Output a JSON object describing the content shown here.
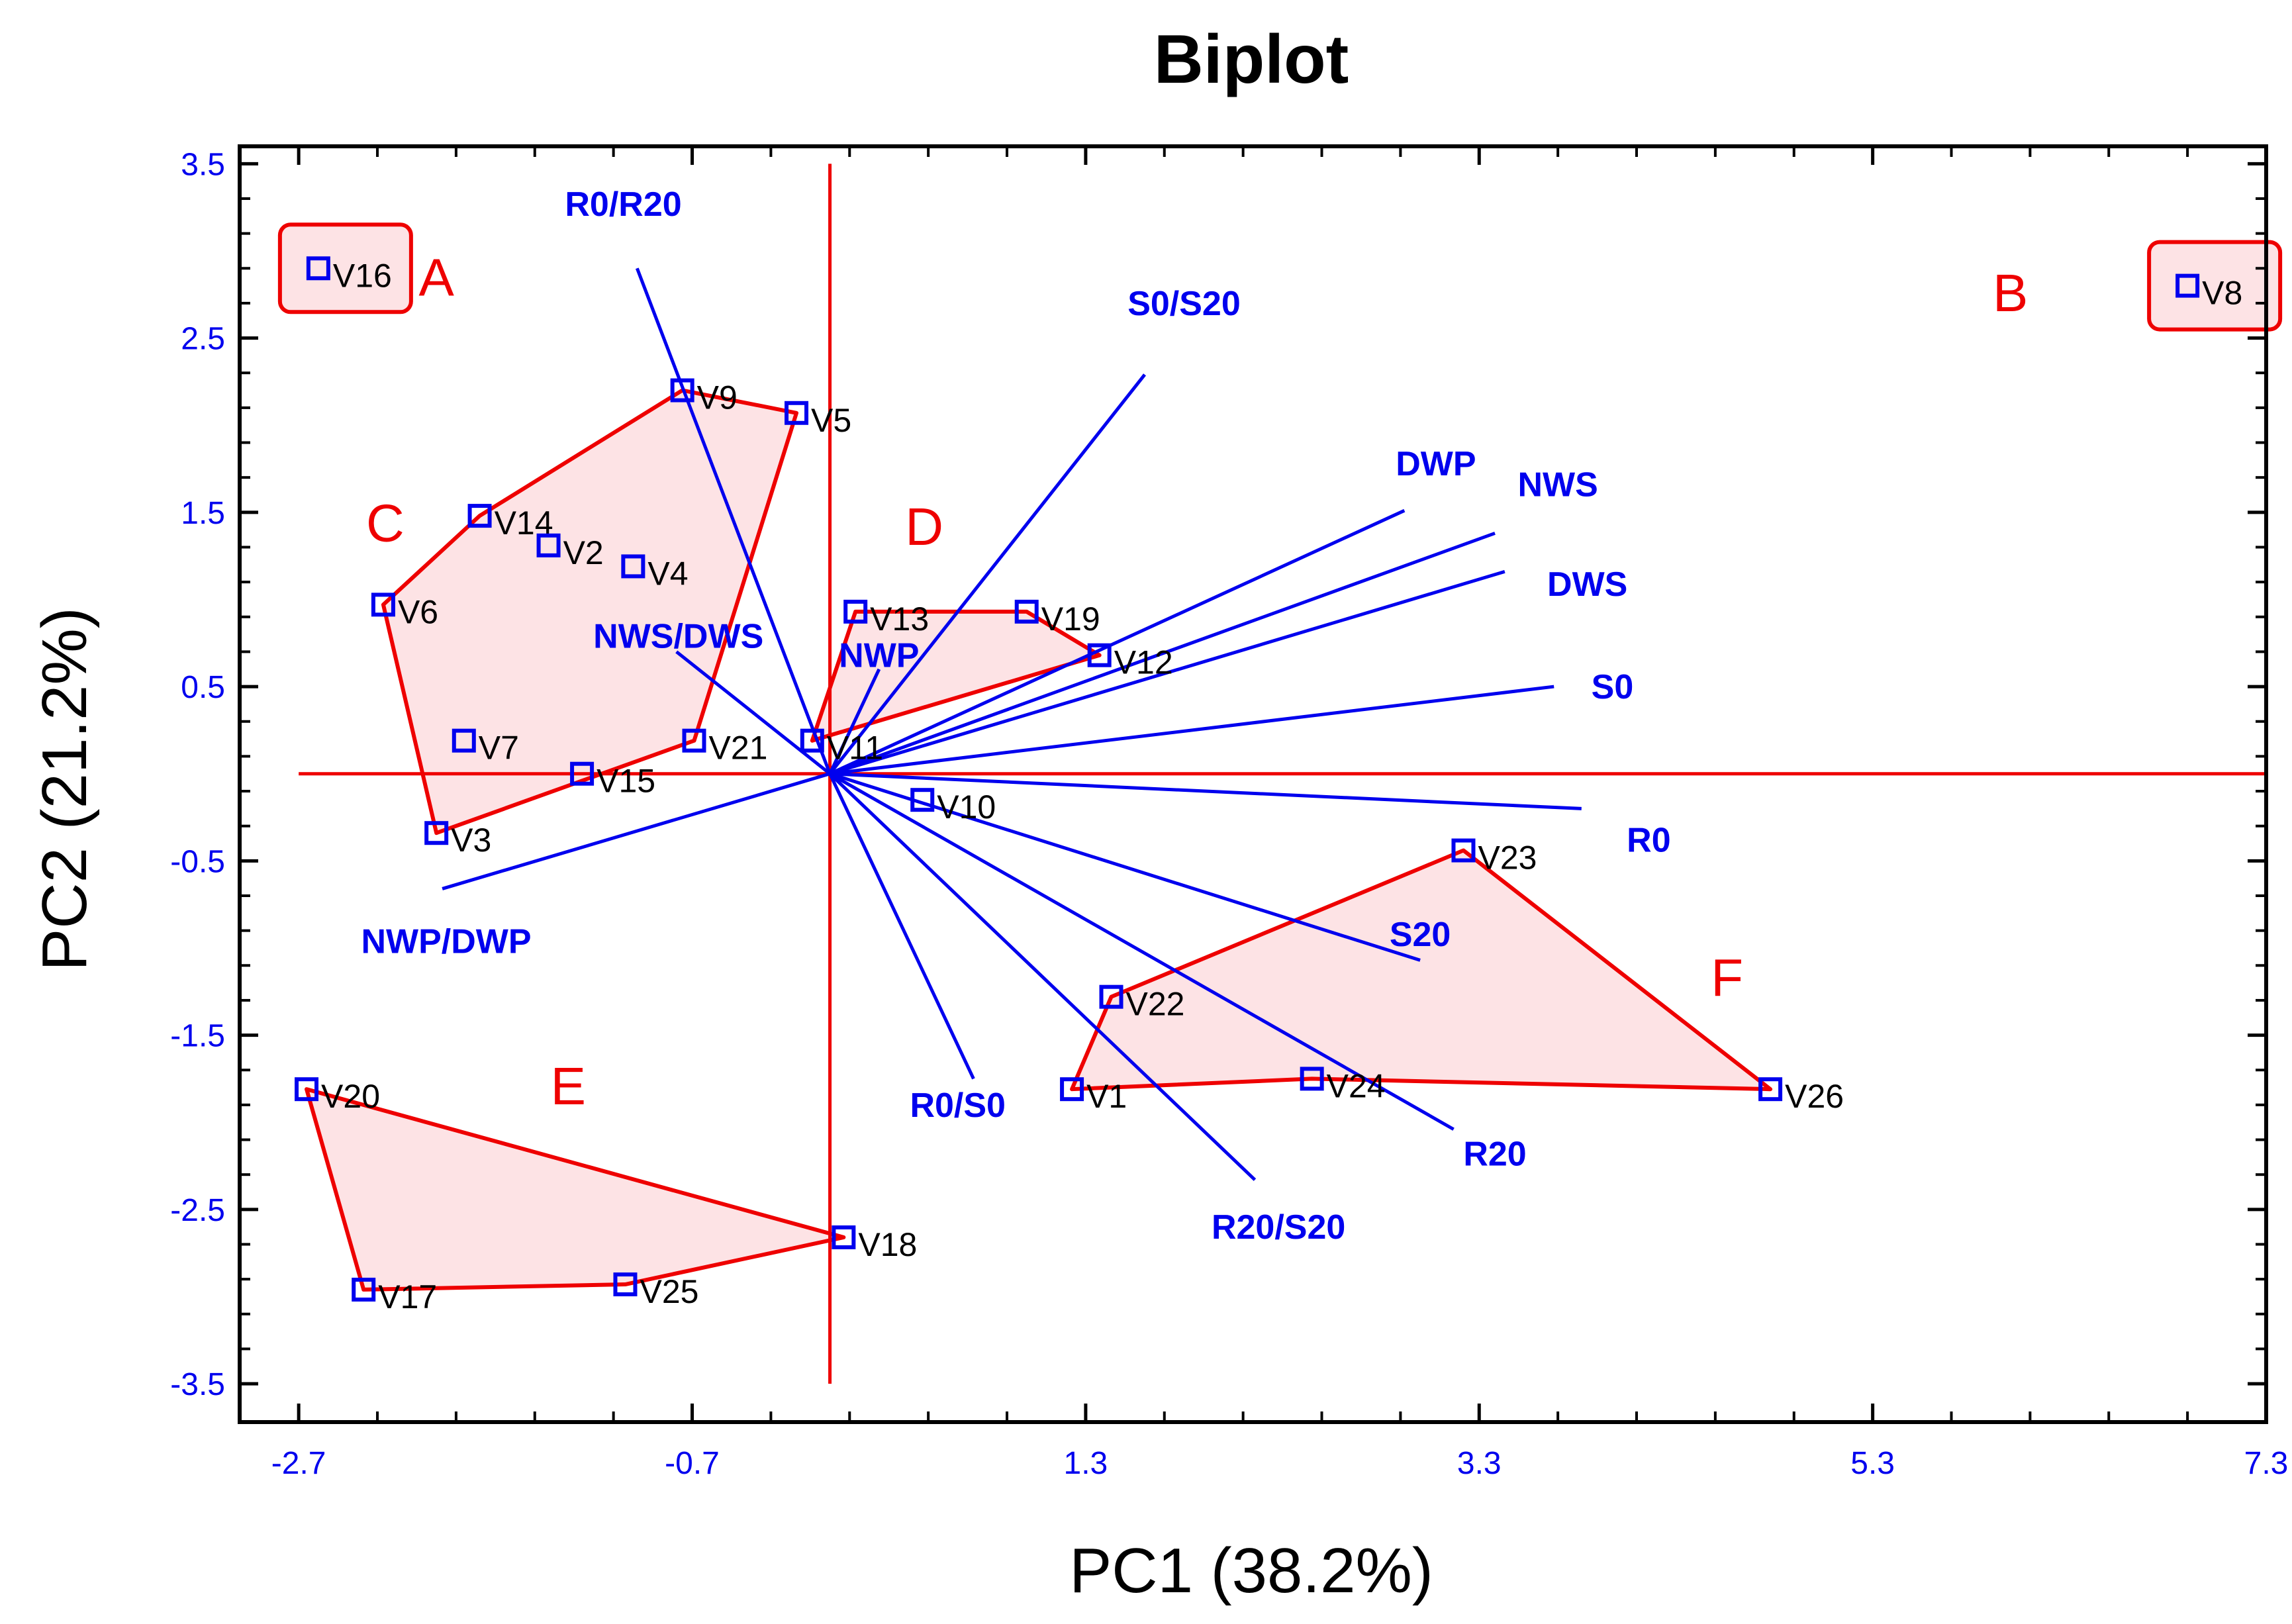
{
  "chart_data": {
    "type": "scatter",
    "title": "Biplot",
    "xlabel": "PC1 (38.2%)",
    "ylabel": "PC2 (21.2%)",
    "xlim": [
      -3.0,
      7.3
    ],
    "ylim": [
      -3.72,
      3.6
    ],
    "x_ticks": [
      "-2.7",
      "-0.7",
      "1.3",
      "3.3",
      "5.3",
      "7.3"
    ],
    "y_ticks": [
      "3.5",
      "2.5",
      "1.5",
      "0.5",
      "-0.5",
      "-1.5",
      "-2.5",
      "-3.5"
    ],
    "colors": {
      "points": "#0000ee",
      "vectors": "#0000ee",
      "hulls": "#ee0000",
      "hull_fill": "#fde3e5",
      "axes_lines": "#ee0000"
    },
    "observations": [
      {
        "label": "V16",
        "x": -2.6,
        "y": 2.9
      },
      {
        "label": "V8",
        "x": 6.9,
        "y": 2.8
      },
      {
        "label": "V9",
        "x": -0.75,
        "y": 2.2
      },
      {
        "label": "V5",
        "x": -0.17,
        "y": 2.07
      },
      {
        "label": "V14",
        "x": -1.78,
        "y": 1.48
      },
      {
        "label": "V2",
        "x": -1.43,
        "y": 1.31
      },
      {
        "label": "V4",
        "x": -1.0,
        "y": 1.19
      },
      {
        "label": "V6",
        "x": -2.27,
        "y": 0.97
      },
      {
        "label": "V13",
        "x": 0.13,
        "y": 0.93
      },
      {
        "label": "V19",
        "x": 1.0,
        "y": 0.93
      },
      {
        "label": "V12",
        "x": 1.37,
        "y": 0.68
      },
      {
        "label": "V7",
        "x": -1.86,
        "y": 0.19
      },
      {
        "label": "V21",
        "x": -0.69,
        "y": 0.19
      },
      {
        "label": "V11",
        "x": -0.09,
        "y": 0.19
      },
      {
        "label": "V15",
        "x": -1.26,
        "y": 0.0
      },
      {
        "label": "V10",
        "x": 0.47,
        "y": -0.15
      },
      {
        "label": "V3",
        "x": -2.0,
        "y": -0.34
      },
      {
        "label": "V23",
        "x": 3.22,
        "y": -0.44
      },
      {
        "label": "V22",
        "x": 1.43,
        "y": -1.28
      },
      {
        "label": "V1",
        "x": 1.23,
        "y": -1.81
      },
      {
        "label": "V24",
        "x": 2.45,
        "y": -1.75
      },
      {
        "label": "V26",
        "x": 4.78,
        "y": -1.81
      },
      {
        "label": "V20",
        "x": -2.66,
        "y": -1.81
      },
      {
        "label": "V18",
        "x": 0.07,
        "y": -2.66
      },
      {
        "label": "V17",
        "x": -2.37,
        "y": -2.96
      },
      {
        "label": "V25",
        "x": -1.04,
        "y": -2.93
      }
    ],
    "variables": [
      {
        "label": "R0/R20",
        "x": -0.98,
        "y": 2.9
      },
      {
        "label": "S0/S20",
        "x": 1.6,
        "y": 2.29
      },
      {
        "label": "DWP",
        "x": 2.92,
        "y": 1.51
      },
      {
        "label": "NWS",
        "x": 3.38,
        "y": 1.38
      },
      {
        "label": "DWS",
        "x": 3.43,
        "y": 1.16
      },
      {
        "label": "NWS/DWS",
        "x": -0.78,
        "y": 0.7
      },
      {
        "label": "NWP",
        "x": 0.25,
        "y": 0.6
      },
      {
        "label": "S0",
        "x": 3.68,
        "y": 0.5
      },
      {
        "label": "R0",
        "x": 3.82,
        "y": -0.2
      },
      {
        "label": "S20",
        "x": 3.0,
        "y": -1.07
      },
      {
        "label": "R0/S0",
        "x": 0.73,
        "y": -1.75
      },
      {
        "label": "R20",
        "x": 3.17,
        "y": -2.04
      },
      {
        "label": "R20/S20",
        "x": 2.16,
        "y": -2.33
      },
      {
        "label": "NWP/DWP",
        "x": -1.97,
        "y": -0.66
      }
    ],
    "groups": [
      {
        "label": "A",
        "members": [
          "V16"
        ]
      },
      {
        "label": "B",
        "members": [
          "V8"
        ]
      },
      {
        "label": "C",
        "members": [
          "V9",
          "V5",
          "V21",
          "V3",
          "V6",
          "V14"
        ]
      },
      {
        "label": "D",
        "members": [
          "V13",
          "V19",
          "V12",
          "V11"
        ]
      },
      {
        "label": "E",
        "members": [
          "V20",
          "V18",
          "V25",
          "V17"
        ]
      },
      {
        "label": "F",
        "members": [
          "V23",
          "V26",
          "V24",
          "V1",
          "V22"
        ]
      }
    ]
  }
}
